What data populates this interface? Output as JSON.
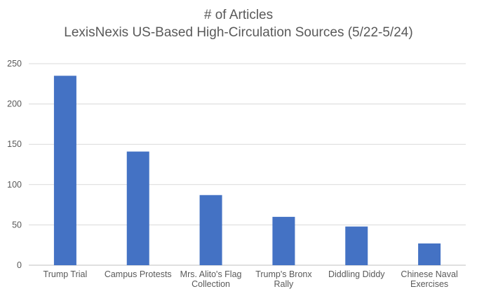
{
  "chart_data": {
    "type": "bar",
    "title": "# of Articles",
    "subtitle": "LexisNexis US-Based High-Circulation Sources (5/22-5/24)",
    "xlabel": "",
    "ylabel": "",
    "categories": [
      [
        "Trump Trial"
      ],
      [
        "Campus Protests"
      ],
      [
        "Mrs. Alito's Flag",
        "Collection"
      ],
      [
        "Trump's Bronx",
        "Rally"
      ],
      [
        "Diddling Diddy"
      ],
      [
        "Chinese Naval",
        "Exercises"
      ]
    ],
    "values": [
      235,
      141,
      87,
      60,
      48,
      27
    ],
    "ylim": [
      0,
      250
    ],
    "yticks": [
      0,
      50,
      100,
      150,
      200,
      250
    ],
    "grid": true,
    "legend": "none",
    "bar_color": "#4472c4"
  }
}
